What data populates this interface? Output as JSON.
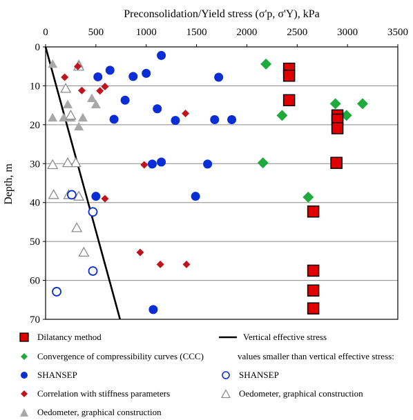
{
  "chart_data": {
    "type": "scatter",
    "title": "",
    "xlabel": "Preconsolidation/Yield stress (σ'p, σ'Y),  kPa",
    "ylabel": "Depth, m",
    "xlim": [
      0,
      3500
    ],
    "ylim": [
      0,
      70
    ],
    "y_inverted": true,
    "x_axis_position": "top",
    "x_ticks": [
      "0",
      "500",
      "1000",
      "1500",
      "2000",
      "2500",
      "3000",
      "3500"
    ],
    "y_ticks": [
      "0",
      "10",
      "20",
      "30",
      "40",
      "50",
      "60",
      "70"
    ],
    "grid": "horizontal",
    "legend_location": "bottom",
    "legend_note": "values smaller than vertical effective stress:",
    "series": [
      {
        "name": "Dilatancy method",
        "marker": "square",
        "color": "#e00000",
        "edge": "#000000",
        "points": [
          [
            2420,
            5.6
          ],
          [
            2420,
            7.4
          ],
          [
            2420,
            13.7
          ],
          [
            2900,
            17.6
          ],
          [
            2900,
            18.7
          ],
          [
            2900,
            20.9
          ],
          [
            2890,
            29.8
          ],
          [
            2660,
            42.3
          ],
          [
            2660,
            57.5
          ],
          [
            2660,
            62.6
          ],
          [
            2660,
            67.2
          ]
        ]
      },
      {
        "name": "Convergence of compressibility curves (CCC)",
        "marker": "diamond",
        "color": "#1faa3c",
        "points": [
          [
            2190,
            4.4
          ],
          [
            2350,
            17.6
          ],
          [
            2880,
            14.6
          ],
          [
            2990,
            17.6
          ],
          [
            3150,
            14.6
          ],
          [
            2160,
            29.8
          ],
          [
            2610,
            38.6
          ]
        ]
      },
      {
        "name": "SHANSEP",
        "marker": "circle",
        "color": "#0a2ed6",
        "points": [
          [
            1150,
            2.2
          ],
          [
            640,
            6.0
          ],
          [
            520,
            7.7
          ],
          [
            870,
            7.6
          ],
          [
            1000,
            6.8
          ],
          [
            1720,
            7.8
          ],
          [
            790,
            13.7
          ],
          [
            1110,
            15.9
          ],
          [
            680,
            18.6
          ],
          [
            1290,
            18.9
          ],
          [
            1680,
            18.7
          ],
          [
            1850,
            18.7
          ],
          [
            1060,
            30.1
          ],
          [
            1150,
            29.6
          ],
          [
            1610,
            30.1
          ],
          [
            500,
            38.4
          ],
          [
            1490,
            38.4
          ],
          [
            1070,
            67.5
          ]
        ]
      },
      {
        "name": "Correlation with stiffness parameters",
        "marker": "diamond",
        "color": "#c0141c",
        "points": [
          [
            190,
            7.8
          ],
          [
            320,
            5.0
          ],
          [
            360,
            11.2
          ],
          [
            540,
            11.3
          ],
          [
            590,
            10.2
          ],
          [
            1390,
            17.1
          ],
          [
            980,
            30.3
          ],
          [
            590,
            39.0
          ],
          [
            940,
            52.8
          ],
          [
            1140,
            55.9
          ],
          [
            1400,
            55.9
          ]
        ]
      },
      {
        "name": "Vertical effective stress",
        "type": "line",
        "color": "#000000",
        "points": [
          [
            0,
            0
          ],
          [
            740,
            70
          ]
        ]
      },
      {
        "name": "SHANSEP",
        "marker": "open-circle",
        "color": "#0a2ed6",
        "points": [
          [
            260,
            38.0
          ],
          [
            470,
            42.4
          ],
          [
            470,
            57.6
          ],
          [
            110,
            62.9
          ]
        ]
      },
      {
        "name": "Oedometer, graphical construction",
        "marker": "open-triangle",
        "color": "#8c8c8c",
        "points": [
          [
            330,
            5.0
          ],
          [
            200,
            10.7
          ],
          [
            250,
            17.6
          ],
          [
            300,
            29.8
          ],
          [
            70,
            30.3
          ],
          [
            220,
            29.8
          ],
          [
            80,
            38.0
          ],
          [
            230,
            38.0
          ],
          [
            330,
            38.4
          ],
          [
            310,
            46.5
          ],
          [
            380,
            52.8
          ]
        ]
      },
      {
        "name": "Oedometer, graphical construction",
        "marker": "filled-triangle",
        "color": "#a8a8a8",
        "points": [
          [
            70,
            4.4
          ],
          [
            330,
            4.4
          ],
          [
            460,
            13.2
          ],
          [
            500,
            14.8
          ],
          [
            220,
            14.8
          ],
          [
            180,
            18.2
          ],
          [
            250,
            18.2
          ],
          [
            370,
            18.2
          ],
          [
            70,
            18.2
          ],
          [
            330,
            20.5
          ]
        ]
      }
    ]
  }
}
